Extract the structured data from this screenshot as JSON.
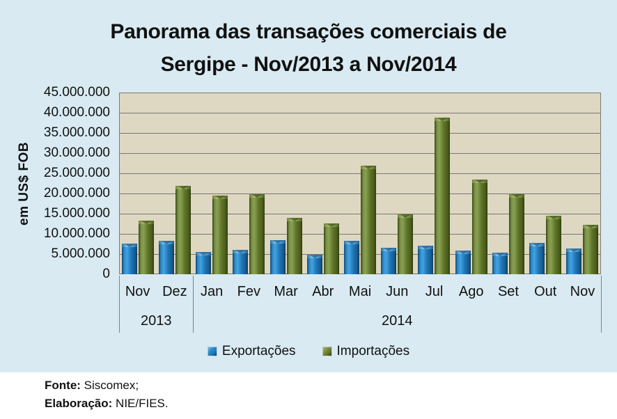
{
  "title": {
    "line1": "Panorama das transações comerciais de",
    "line2": "Sergipe - Nov/2013 a Nov/2014"
  },
  "y_axis": {
    "title": "em US$ FOB",
    "ticks": [
      "45.000.000",
      "40.000.000",
      "35.000.000",
      "30.000.000",
      "25.000.000",
      "20.000.000",
      "15.000.000",
      "10.000.000",
      "5.000.000",
      "0"
    ]
  },
  "x_axis": {
    "months": [
      "Nov",
      "Dez",
      "Jan",
      "Fev",
      "Mar",
      "Abr",
      "Mai",
      "Jun",
      "Jul",
      "Ago",
      "Set",
      "Out",
      "Nov"
    ],
    "year_groups": [
      {
        "label": "2013",
        "months": 2
      },
      {
        "label": "2014",
        "months": 11
      }
    ]
  },
  "legend": {
    "items": [
      {
        "label": "Exportações",
        "series": "exp",
        "color": "#1d74b4"
      },
      {
        "label": "Importações",
        "series": "imp",
        "color": "#5d7226"
      }
    ]
  },
  "footer": {
    "line1_label": "Fonte:",
    "line1_text": "Siscomex;",
    "line2_label": "Elaboração:",
    "line2_text": "NIE/FIES."
  },
  "colors": {
    "canvas_bg": "#d9eaf2",
    "plot_bg": "#ded8c3",
    "gridline": "#7a7670",
    "plot_border": "#7a7a70",
    "separator": "#7b848b",
    "export_blue": "#1d74b4",
    "import_green": "#5d7226"
  },
  "chart_data": {
    "type": "bar",
    "categories": [
      "Nov/2013",
      "Dez/2013",
      "Jan/2014",
      "Fev/2014",
      "Mar/2014",
      "Abr/2014",
      "Mai/2014",
      "Jun/2014",
      "Jul/2014",
      "Ago/2014",
      "Set/2014",
      "Out/2014",
      "Nov/2014"
    ],
    "series": [
      {
        "name": "Exportações",
        "color": "#1d74b4",
        "values": [
          7600000,
          8300000,
          5600000,
          6000000,
          8400000,
          4800000,
          8300000,
          6500000,
          7100000,
          5900000,
          5400000,
          7700000,
          6400000
        ]
      },
      {
        "name": "Importações",
        "color": "#5d7226",
        "values": [
          13200000,
          21900000,
          19500000,
          19800000,
          13900000,
          12600000,
          26900000,
          14800000,
          38800000,
          23500000,
          19800000,
          14500000,
          12300000
        ]
      }
    ],
    "title": "Panorama das transações comerciais de Sergipe - Nov/2013 a Nov/2014",
    "xlabel": "",
    "ylabel": "em US$ FOB",
    "ylim": [
      0,
      45000000
    ],
    "ytick_step": 5000000,
    "grid": true,
    "legend_position": "bottom"
  }
}
